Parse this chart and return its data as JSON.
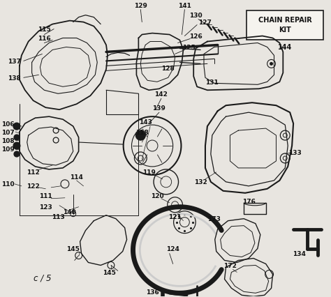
{
  "bg_color": "#e8e5e0",
  "line_color": "#1a1a1a",
  "text_color": "#111111",
  "box_label_line1": "CHAIN REPAIR",
  "box_label_line2": "KIT",
  "box_label_num": "144",
  "bottom_label": "c / 5",
  "figsize": [
    4.74,
    4.27
  ],
  "dpi": 100
}
